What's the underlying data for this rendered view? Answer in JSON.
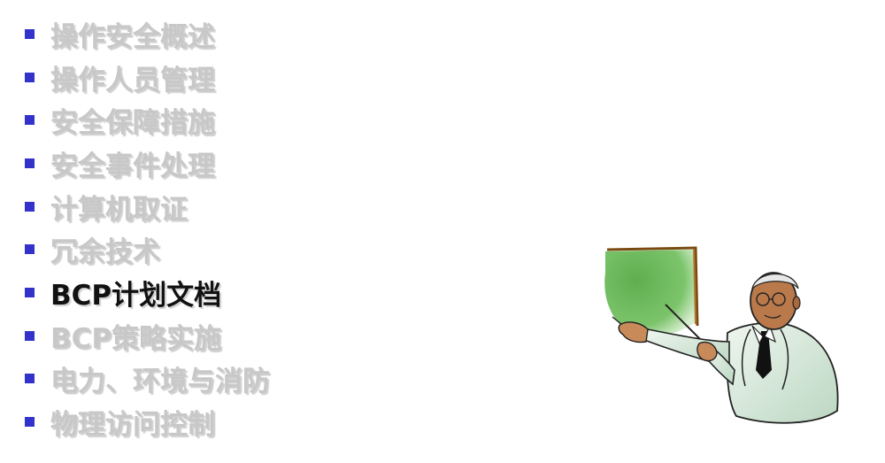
{
  "agenda": {
    "items": [
      {
        "label": "操作安全概述",
        "active": false
      },
      {
        "label": "操作人员管理",
        "active": false
      },
      {
        "label": "安全保障措施",
        "active": false
      },
      {
        "label": "安全事件处理",
        "active": false
      },
      {
        "label": "计算机取证",
        "active": false
      },
      {
        "label": "冗余技术",
        "active": false
      },
      {
        "label": "BCP计划文档",
        "active": true
      },
      {
        "label": "BCP策略实施",
        "active": false
      },
      {
        "label": "电力、环境与消防",
        "active": false
      },
      {
        "label": "物理访问控制",
        "active": false
      }
    ]
  },
  "colors": {
    "bullet": "#3333cc",
    "inactive_text": "#c8c8c8",
    "active_text": "#111111",
    "board": "#6dbb5d",
    "board_frame": "#8a5a1a"
  },
  "illustration": {
    "icon": "presenter-at-board-icon"
  }
}
